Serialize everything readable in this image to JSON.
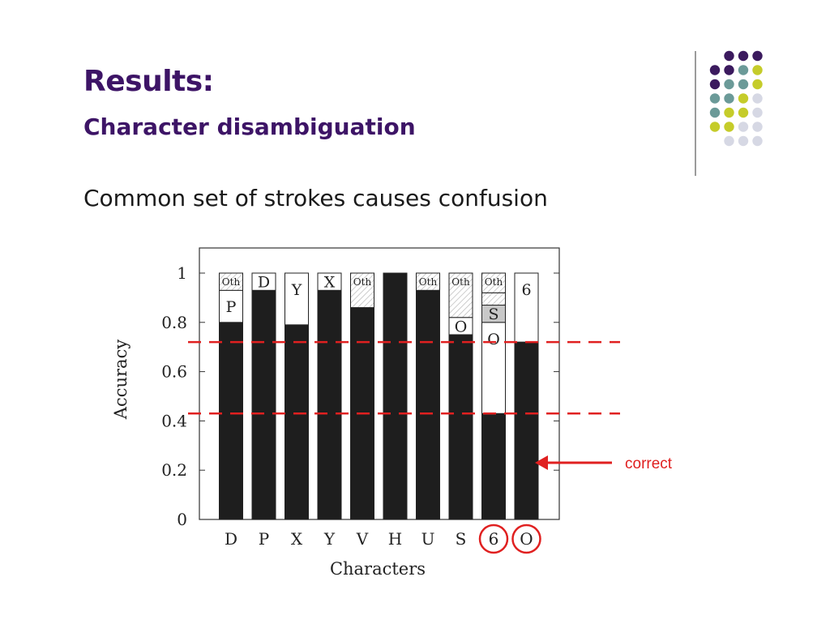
{
  "slide": {
    "title": "Results:",
    "subtitle": "Character disambiguation",
    "body": "Common set of strokes causes confusion"
  },
  "colors": {
    "title": "#3d1466",
    "correct_bar": "#1e1e1e",
    "other_hatch": "#b8b8b8",
    "confusion_shade": "#c8c8c8",
    "annotation": "#e02020",
    "decor_dots": [
      "#3b1a5e",
      "#6b9a98",
      "#c5cc2a",
      "#d6d8e4"
    ]
  },
  "chart_data": {
    "type": "bar",
    "stacked": true,
    "xlabel": "Characters",
    "ylabel": "Accuracy",
    "ylim": [
      0,
      1
    ],
    "yticks": [
      0,
      0.2,
      0.4,
      0.6,
      0.8,
      1
    ],
    "ytick_labels": [
      "0",
      "0.2",
      "0.4",
      "0.6",
      "0.8",
      "1"
    ],
    "categories": [
      "D",
      "P",
      "X",
      "Y",
      "V",
      "H",
      "U",
      "S",
      "6",
      "O"
    ],
    "circled_categories": [
      "6",
      "O"
    ],
    "bars": [
      {
        "char": "D",
        "segments": [
          {
            "label": "",
            "value": 0.8,
            "kind": "correct"
          },
          {
            "label": "P",
            "value": 0.13,
            "kind": "confusion"
          },
          {
            "label": "Oth",
            "value": 0.07,
            "kind": "other"
          }
        ]
      },
      {
        "char": "P",
        "segments": [
          {
            "label": "",
            "value": 0.93,
            "kind": "correct"
          },
          {
            "label": "D",
            "value": 0.07,
            "kind": "confusion"
          }
        ]
      },
      {
        "char": "X",
        "segments": [
          {
            "label": "",
            "value": 0.79,
            "kind": "correct"
          },
          {
            "label": "Y",
            "value": 0.21,
            "kind": "confusion"
          }
        ]
      },
      {
        "char": "Y",
        "segments": [
          {
            "label": "",
            "value": 0.93,
            "kind": "correct"
          },
          {
            "label": "X",
            "value": 0.07,
            "kind": "confusion"
          }
        ]
      },
      {
        "char": "V",
        "segments": [
          {
            "label": "",
            "value": 0.86,
            "kind": "correct"
          },
          {
            "label": "Oth",
            "value": 0.14,
            "kind": "other"
          }
        ]
      },
      {
        "char": "H",
        "segments": [
          {
            "label": "",
            "value": 1.0,
            "kind": "correct"
          }
        ]
      },
      {
        "char": "U",
        "segments": [
          {
            "label": "",
            "value": 0.93,
            "kind": "correct"
          },
          {
            "label": "Oth",
            "value": 0.07,
            "kind": "other"
          }
        ]
      },
      {
        "char": "S",
        "segments": [
          {
            "label": "",
            "value": 0.75,
            "kind": "correct"
          },
          {
            "label": "O",
            "value": 0.07,
            "kind": "confusion"
          },
          {
            "label": "Oth",
            "value": 0.18,
            "kind": "other"
          }
        ]
      },
      {
        "char": "6",
        "segments": [
          {
            "label": "",
            "value": 0.43,
            "kind": "correct"
          },
          {
            "label": "O",
            "value": 0.37,
            "kind": "confusion"
          },
          {
            "label": "S",
            "value": 0.07,
            "kind": "confusion-shaded"
          },
          {
            "label": "",
            "value": 0.05,
            "kind": "other"
          },
          {
            "label": "Oth",
            "value": 0.08,
            "kind": "other"
          }
        ]
      },
      {
        "char": "O",
        "segments": [
          {
            "label": "",
            "value": 0.72,
            "kind": "correct"
          },
          {
            "label": "6",
            "value": 0.28,
            "kind": "confusion"
          }
        ]
      }
    ],
    "reference_lines": [
      0.72,
      0.43
    ],
    "annotation": {
      "text": "correct",
      "points_to_value": 0.23
    }
  }
}
